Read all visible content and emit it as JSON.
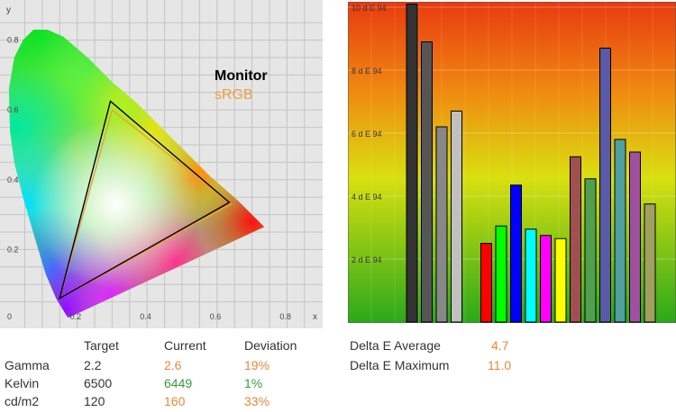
{
  "colors": {
    "current": "#e8873a",
    "deviation": "#e8873a",
    "kelvin_current": "#3a9a3a",
    "monitor_triangle": "#000000",
    "srgb_triangle": "#e8a040",
    "delta_avg": "#e8873a"
  },
  "chart_data": [
    {
      "type": "scatter",
      "title": "",
      "xlabel": "x",
      "ylabel": "y",
      "xlim": [
        0,
        0.85
      ],
      "ylim": [
        0,
        0.85
      ],
      "xticks": [
        "0",
        "0.2",
        "0.4",
        "0.6",
        "0.8"
      ],
      "yticks": [
        "0.2",
        "0.4",
        "0.6",
        "0.8"
      ],
      "grid": true,
      "legend": [
        "Monitor",
        "sRGB"
      ],
      "series": [
        {
          "name": "Monitor",
          "points": [
            {
              "x": 0.635,
              "y": 0.335
            },
            {
              "x": 0.295,
              "y": 0.625
            },
            {
              "x": 0.15,
              "y": 0.06
            }
          ]
        },
        {
          "name": "sRGB",
          "points": [
            {
              "x": 0.64,
              "y": 0.33
            },
            {
              "x": 0.3,
              "y": 0.6
            },
            {
              "x": 0.15,
              "y": 0.06
            }
          ]
        }
      ]
    },
    {
      "type": "bar",
      "yticks": [
        "2 d E 94",
        "4 d E 94",
        "6 d E 94",
        "8 d E 94",
        "10 d E 94"
      ],
      "ylim": [
        0,
        10
      ],
      "grid": true,
      "bars": [
        {
          "value": 10.1,
          "color": "#333333"
        },
        {
          "value": 8.9,
          "color": "#555555"
        },
        {
          "value": 6.2,
          "color": "#888888"
        },
        {
          "value": 6.7,
          "color": "#c0c0c0"
        },
        {
          "value": null
        },
        {
          "value": 2.5,
          "color": "#ff0000"
        },
        {
          "value": 3.05,
          "color": "#00ff00"
        },
        {
          "value": 4.35,
          "color": "#0000ff"
        },
        {
          "value": 2.95,
          "color": "#00ffff"
        },
        {
          "value": 2.75,
          "color": "#ff00ff"
        },
        {
          "value": 2.65,
          "color": "#ffff00"
        },
        {
          "value": 5.25,
          "color": "#a05050"
        },
        {
          "value": 4.55,
          "color": "#50a050"
        },
        {
          "value": 8.7,
          "color": "#5a5aa8"
        },
        {
          "value": 5.8,
          "color": "#50a0a0"
        },
        {
          "value": 5.4,
          "color": "#a050a0"
        },
        {
          "value": 3.75,
          "color": "#a0a060"
        }
      ]
    }
  ],
  "table": {
    "headers": [
      "Target",
      "Current",
      "Deviation"
    ],
    "rows": [
      {
        "label": "Gamma",
        "target": "2.2",
        "current": "2.6",
        "deviation": "19%"
      },
      {
        "label": "Kelvin",
        "target": "6500",
        "current": "6449",
        "deviation": "1%"
      },
      {
        "label": "cd/m2",
        "target": "120",
        "current": "160",
        "deviation": "33%"
      }
    ]
  },
  "delta": {
    "rows": [
      {
        "label": "Delta E Average",
        "value": "4.7"
      },
      {
        "label": "Delta E Maximum",
        "value": "11.0"
      }
    ]
  }
}
